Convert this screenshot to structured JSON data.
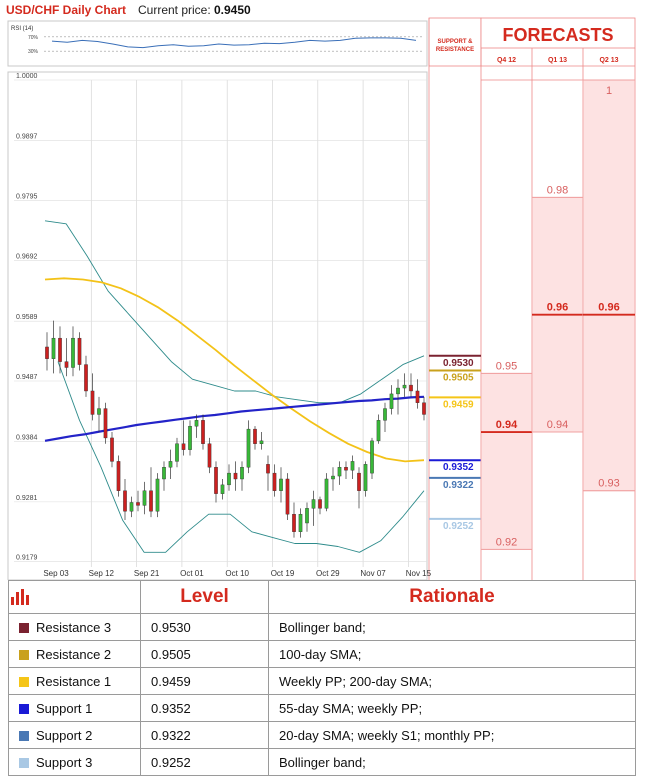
{
  "header": {
    "title": "USD/CHF Daily Chart",
    "price_label": "Current price:",
    "price_value": "0.9450"
  },
  "rsi": {
    "label": "RSI (14)",
    "levels": [
      "70%",
      "30%"
    ]
  },
  "side": {
    "support_label_1": "SUPPORT &",
    "support_label_2": "RESISTANCE",
    "forecasts_title": "FORECASTS",
    "quarters": [
      "Q4 12",
      "Q1 13",
      "Q2 13"
    ]
  },
  "colors": {
    "red": "#d42a1e",
    "dark_red": "#7a2230",
    "gold": "#c9a11c",
    "yellow": "#f5c518",
    "blue": "#1a1ad6",
    "steel_blue": "#4a78b4",
    "light_blue": "#a9c8e4",
    "candle_up": "#38b838",
    "candle_down": "#cc2020",
    "bollinger": "#2e8b8b",
    "sma_yellow": "#f3c218",
    "sma_blue": "#2323c8",
    "forecast_fill": "#fde2e2"
  },
  "chart_data": {
    "type": "candlestick",
    "title": "USD/CHF Daily Chart",
    "yticks": [
      "1.0000",
      "0.9897",
      "0.9795",
      "0.9692",
      "0.9589",
      "0.9487",
      "0.9384",
      "0.9281",
      "0.9179"
    ],
    "ylim": [
      0.917,
      1.0
    ],
    "xticks": [
      "Sep 03",
      "Sep 12",
      "Sep 21",
      "Oct 01",
      "Oct 10",
      "Oct 19",
      "Oct 29",
      "Nov 07",
      "Nov 15"
    ],
    "candles": [
      [
        0.9545,
        0.957,
        0.9505,
        0.9525
      ],
      [
        0.9525,
        0.959,
        0.95,
        0.956
      ],
      [
        0.956,
        0.958,
        0.95,
        0.952
      ],
      [
        0.952,
        0.956,
        0.9495,
        0.951
      ],
      [
        0.951,
        0.958,
        0.9495,
        0.956
      ],
      [
        0.956,
        0.957,
        0.9505,
        0.9515
      ],
      [
        0.9515,
        0.953,
        0.946,
        0.947
      ],
      [
        0.947,
        0.95,
        0.942,
        0.943
      ],
      [
        0.943,
        0.946,
        0.94,
        0.944
      ],
      [
        0.944,
        0.945,
        0.938,
        0.939
      ],
      [
        0.939,
        0.94,
        0.934,
        0.935
      ],
      [
        0.935,
        0.936,
        0.929,
        0.93
      ],
      [
        0.93,
        0.932,
        0.925,
        0.9265
      ],
      [
        0.9265,
        0.929,
        0.9255,
        0.928
      ],
      [
        0.928,
        0.93,
        0.9265,
        0.9275
      ],
      [
        0.9275,
        0.9315,
        0.926,
        0.93
      ],
      [
        0.93,
        0.934,
        0.9255,
        0.9265
      ],
      [
        0.9265,
        0.933,
        0.9255,
        0.932
      ],
      [
        0.932,
        0.935,
        0.93,
        0.934
      ],
      [
        0.934,
        0.937,
        0.932,
        0.935
      ],
      [
        0.935,
        0.939,
        0.934,
        0.938
      ],
      [
        0.938,
        0.942,
        0.936,
        0.937
      ],
      [
        0.937,
        0.942,
        0.936,
        0.941
      ],
      [
        0.941,
        0.943,
        0.939,
        0.942
      ],
      [
        0.942,
        0.943,
        0.937,
        0.938
      ],
      [
        0.938,
        0.939,
        0.933,
        0.934
      ],
      [
        0.934,
        0.935,
        0.928,
        0.9295
      ],
      [
        0.9295,
        0.932,
        0.9285,
        0.931
      ],
      [
        0.931,
        0.9345,
        0.93,
        0.933
      ],
      [
        0.933,
        0.935,
        0.93,
        0.932
      ],
      [
        0.932,
        0.935,
        0.93,
        0.934
      ],
      [
        0.934,
        0.942,
        0.933,
        0.9405
      ],
      [
        0.9405,
        0.941,
        0.937,
        0.938
      ],
      [
        0.938,
        0.94,
        0.937,
        0.9385
      ],
      [
        0.9345,
        0.936,
        0.93,
        0.933
      ],
      [
        0.933,
        0.9345,
        0.929,
        0.93
      ],
      [
        0.93,
        0.934,
        0.928,
        0.932
      ],
      [
        0.932,
        0.933,
        0.925,
        0.926
      ],
      [
        0.926,
        0.928,
        0.922,
        0.923
      ],
      [
        0.923,
        0.927,
        0.922,
        0.926
      ],
      [
        0.9245,
        0.928,
        0.923,
        0.927
      ],
      [
        0.927,
        0.93,
        0.924,
        0.9285
      ],
      [
        0.9285,
        0.929,
        0.926,
        0.927
      ],
      [
        0.927,
        0.933,
        0.9265,
        0.932
      ],
      [
        0.932,
        0.934,
        0.93,
        0.9325
      ],
      [
        0.9325,
        0.935,
        0.931,
        0.934
      ],
      [
        0.934,
        0.935,
        0.932,
        0.9335
      ],
      [
        0.9335,
        0.936,
        0.932,
        0.935
      ],
      [
        0.933,
        0.934,
        0.927,
        0.93
      ],
      [
        0.93,
        0.935,
        0.929,
        0.9345
      ],
      [
        0.933,
        0.939,
        0.932,
        0.9385
      ],
      [
        0.9385,
        0.943,
        0.938,
        0.942
      ],
      [
        0.942,
        0.945,
        0.94,
        0.944
      ],
      [
        0.944,
        0.948,
        0.943,
        0.9465
      ],
      [
        0.9465,
        0.949,
        0.943,
        0.9475
      ],
      [
        0.9475,
        0.95,
        0.946,
        0.948
      ],
      [
        0.948,
        0.95,
        0.946,
        0.947
      ],
      [
        0.947,
        0.949,
        0.944,
        0.945
      ],
      [
        0.945,
        0.946,
        0.942,
        0.943
      ]
    ],
    "sma_200": [
      0.9385,
      0.9389,
      0.9393,
      0.9396,
      0.94,
      0.9404,
      0.9408,
      0.9412,
      0.9415,
      0.9418,
      0.9421,
      0.9424,
      0.9427,
      0.9429,
      0.9432,
      0.9435,
      0.9437,
      0.9439,
      0.9441,
      0.9443,
      0.9445,
      0.9447,
      0.9449,
      0.9451,
      0.9453,
      0.9454,
      0.9456,
      0.9457,
      0.9459,
      0.946
    ],
    "sma_100": [
      0.966,
      0.9662,
      0.966,
      0.9655,
      0.9645,
      0.963,
      0.9612,
      0.959,
      0.9565,
      0.954,
      0.9513,
      0.9488,
      0.9463,
      0.944,
      0.9418,
      0.9398,
      0.938,
      0.9366,
      0.9355,
      0.935,
      0.9352
    ],
    "bb_upper": [
      0.976,
      0.9755,
      0.97,
      0.964,
      0.96,
      0.956,
      0.952,
      0.949,
      0.948,
      0.947,
      0.947,
      0.946,
      0.9455,
      0.945,
      0.945,
      0.9465,
      0.949,
      0.9515,
      0.953
    ],
    "bb_lower": [
      0.952,
      0.942,
      0.934,
      0.925,
      0.9195,
      0.9195,
      0.923,
      0.926,
      0.926,
      0.923,
      0.922,
      0.921,
      0.921,
      0.9205,
      0.9195,
      0.9215,
      0.9255,
      0.93
    ],
    "rsi_series": [
      58,
      55,
      60,
      57,
      50,
      42,
      40,
      45,
      48,
      44,
      45,
      50,
      47,
      48,
      52,
      51,
      55,
      60,
      58,
      60,
      66,
      67,
      67,
      66,
      60
    ],
    "levels": [
      {
        "label": "0.9530",
        "value": 0.953,
        "color": "#7a2230"
      },
      {
        "label": "0.9505",
        "value": 0.9505,
        "color": "#c9a11c"
      },
      {
        "label": "0.9459",
        "value": 0.9459,
        "color": "#f5c518"
      },
      {
        "label": "0.9352",
        "value": 0.9352,
        "color": "#1a1ad6"
      },
      {
        "label": "0.9322",
        "value": 0.9322,
        "color": "#4a78b4"
      },
      {
        "label": "0.9252",
        "value": 0.9252,
        "color": "#a9c8e4"
      }
    ],
    "forecasts": [
      {
        "quarter": "Q4 12",
        "values": [
          {
            "label": "0.95",
            "value": 0.95
          },
          {
            "label": "0.94",
            "value": 0.94,
            "bold": true
          },
          {
            "label": "0.92",
            "value": 0.92
          }
        ]
      },
      {
        "quarter": "Q1 13",
        "values": [
          {
            "label": "0.98",
            "value": 0.98
          },
          {
            "label": "0.96",
            "value": 0.96,
            "bold": true
          },
          {
            "label": "0.94",
            "value": 0.94
          }
        ]
      },
      {
        "quarter": "Q2 13",
        "values": [
          {
            "label": "1",
            "value": 1.0
          },
          {
            "label": "0.96",
            "value": 0.96,
            "bold": true
          },
          {
            "label": "0.93",
            "value": 0.93
          }
        ]
      }
    ]
  },
  "table": {
    "icon": "bar-chart-icon",
    "headers": [
      "Level",
      "Rationale"
    ],
    "rows": [
      {
        "name": "Resistance 3",
        "color": "#7a2230",
        "level": "0.9530",
        "rationale": "Bollinger band;"
      },
      {
        "name": "Resistance 2",
        "color": "#c9a11c",
        "level": "0.9505",
        "rationale": "100-day SMA;"
      },
      {
        "name": "Resistance 1",
        "color": "#f5c518",
        "level": "0.9459",
        "rationale": "Weekly PP; 200-day SMA;"
      },
      {
        "name": "Support 1",
        "color": "#1a1ad6",
        "level": "0.9352",
        "rationale": "55-day SMA; weekly PP;"
      },
      {
        "name": "Support 2",
        "color": "#4a78b4",
        "level": "0.9322",
        "rationale": "20-day SMA; weekly S1; monthly PP;"
      },
      {
        "name": "Support 3",
        "color": "#a9c8e4",
        "level": "0.9252",
        "rationale": "Bollinger band;"
      }
    ]
  }
}
